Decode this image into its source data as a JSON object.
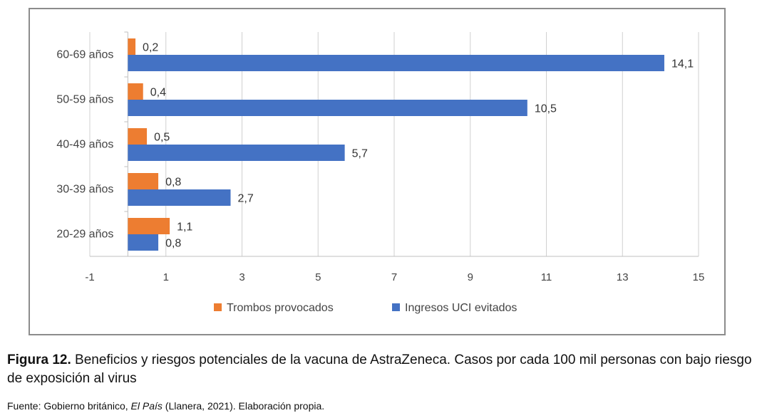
{
  "chart_data": {
    "type": "bar",
    "orientation": "horizontal",
    "categories": [
      "60-69 años",
      "50-59 años",
      "40-49 años",
      "30-39 años",
      "20-29 años"
    ],
    "series": [
      {
        "name": "Trombos provocados",
        "color": "#ed7d31",
        "values": [
          0.2,
          0.4,
          0.5,
          0.8,
          1.1
        ],
        "labels": [
          "0,2",
          "0,4",
          "0,5",
          "0,8",
          "1,1"
        ]
      },
      {
        "name": "Ingresos UCI evitados",
        "color": "#4472c4",
        "values": [
          14.1,
          10.5,
          5.7,
          2.7,
          0.8
        ],
        "labels": [
          "14,1",
          "10,5",
          "5,7",
          "2,7",
          "0,8"
        ]
      }
    ],
    "xlim": [
      -1,
      15
    ],
    "xticks": [
      -1,
      1,
      3,
      5,
      7,
      9,
      11,
      13,
      15
    ],
    "grid": "vertical",
    "legend": "bottom"
  },
  "caption": {
    "label": "Figura 12.",
    "text": " Beneficios y riesgos potenciales de la vacuna de AstraZeneca. Casos por cada 100 mil personas con bajo riesgo de exposición al virus"
  },
  "source": {
    "prefix": "Fuente: Gobierno británico, ",
    "italic": "El País",
    "suffix": " (Llanera, 2021). Elaboración propia."
  }
}
